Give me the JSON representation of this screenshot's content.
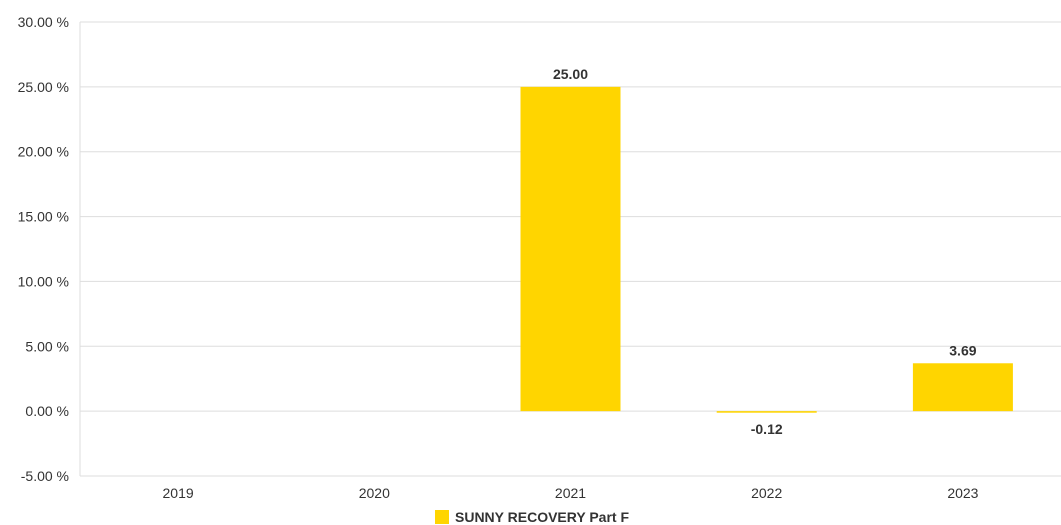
{
  "chart_data": {
    "type": "bar",
    "categories": [
      "2019",
      "2020",
      "2021",
      "2022",
      "2023"
    ],
    "series": [
      {
        "name": "SUNNY RECOVERY Part F",
        "values": [
          null,
          null,
          25.0,
          -0.12,
          3.69
        ],
        "labels": [
          "",
          "",
          "25.00",
          "-0.12",
          "3.69"
        ]
      }
    ],
    "ylim": [
      -5,
      30
    ],
    "yticks": [
      30,
      25,
      20,
      15,
      10,
      5,
      0,
      -5
    ],
    "ytick_labels": [
      "30.00 %",
      "25.00 %",
      "20.00 %",
      "15.00 %",
      "10.00 %",
      "5.00 %",
      "0.00 %",
      "-5.00 %"
    ],
    "grid": true,
    "legend_position": "bottom",
    "bar_color": "#FFD500",
    "grid_color": "#DDDDDD",
    "text_color": "#333333"
  }
}
